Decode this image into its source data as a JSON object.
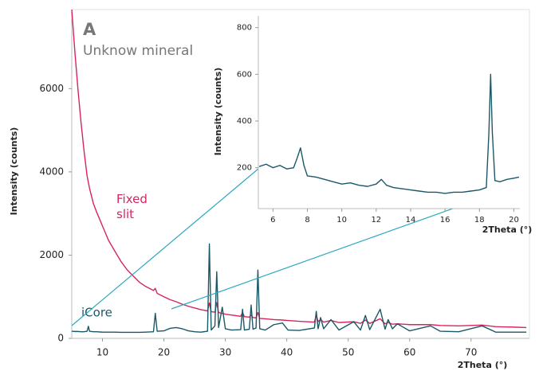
{
  "chart_data": [
    {
      "type": "line",
      "annotations": [
        "A",
        "Unknow mineral"
      ],
      "x_label": "2Theta (°)",
      "y_label": "Intensity (counts)",
      "xlim": [
        5,
        79.5
      ],
      "ylim": [
        0,
        7900
      ],
      "xticks": [
        10,
        20,
        30,
        40,
        50,
        60,
        70
      ],
      "yticks": [
        0,
        2000,
        4000,
        6000
      ],
      "x": [
        5,
        5.5,
        6,
        6.5,
        7,
        7.5,
        7.7,
        7.9,
        8.5,
        9,
        10,
        11,
        12,
        13,
        14,
        15,
        16,
        17,
        18.3,
        18.6,
        18.9,
        20,
        21,
        22,
        23,
        24,
        25,
        26,
        27.1,
        27.4,
        27.7,
        28.3,
        28.6,
        28.9,
        29.5,
        30,
        31,
        32.5,
        32.8,
        33.1,
        33.9,
        34.2,
        34.5,
        35,
        35.3,
        35.6,
        36.5,
        37.9,
        39.3,
        40.2,
        42,
        44.5,
        44.8,
        45.1,
        45.5,
        46,
        47.2,
        48.5,
        50.9,
        52,
        52.8,
        53.5,
        55.2,
        56,
        56.5,
        57.2,
        58,
        60,
        63.4,
        65,
        68,
        71.8,
        74,
        77,
        79
      ],
      "series": [
        {
          "name": "Fixed slit",
          "color": "#d6255d",
          "values": [
            7900,
            6900,
            6000,
            5200,
            4500,
            3900,
            3750,
            3600,
            3250,
            3050,
            2700,
            2350,
            2100,
            1850,
            1650,
            1500,
            1350,
            1250,
            1150,
            1200,
            1080,
            1000,
            930,
            880,
            820,
            770,
            730,
            690,
            660,
            850,
            640,
            630,
            860,
            620,
            600,
            580,
            560,
            530,
            620,
            520,
            510,
            560,
            500,
            490,
            620,
            480,
            470,
            450,
            440,
            430,
            410,
            390,
            560,
            400,
            450,
            390,
            430,
            380,
            400,
            360,
            440,
            360,
            470,
            350,
            380,
            340,
            350,
            330,
            330,
            310,
            300,
            320,
            280,
            270,
            260
          ]
        },
        {
          "name": "iCore",
          "color": "#1b5867",
          "values": [
            170,
            165,
            165,
            160,
            160,
            170,
            290,
            170,
            160,
            160,
            150,
            150,
            150,
            145,
            145,
            145,
            145,
            150,
            160,
            600,
            170,
            180,
            240,
            260,
            230,
            180,
            160,
            150,
            170,
            2270,
            200,
            300,
            1600,
            260,
            750,
            230,
            200,
            210,
            700,
            200,
            220,
            800,
            220,
            250,
            1640,
            230,
            200,
            330,
            370,
            200,
            190,
            250,
            650,
            230,
            500,
            230,
            450,
            200,
            400,
            200,
            550,
            210,
            700,
            220,
            450,
            230,
            350,
            180,
            300,
            170,
            160,
            300,
            150,
            150,
            150
          ]
        }
      ]
    },
    {
      "type": "line",
      "x_label": "2Theta (°)",
      "y_label": "Intensity (counts)",
      "xlim": [
        5.15,
        20.35
      ],
      "ylim": [
        25,
        850
      ],
      "xticks": [
        6,
        8,
        10,
        12,
        14,
        16,
        18,
        20
      ],
      "yticks": [
        200,
        400,
        600,
        800
      ],
      "x": [
        5.2,
        5.6,
        6,
        6.4,
        6.8,
        7.2,
        7.4,
        7.6,
        7.8,
        8,
        8.5,
        9,
        9.5,
        10,
        10.5,
        11,
        11.5,
        12,
        12.3,
        12.6,
        13,
        13.5,
        14,
        14.5,
        15,
        15.5,
        16,
        16.5,
        17,
        17.5,
        18,
        18.4,
        18.55,
        18.65,
        18.75,
        18.9,
        19.2,
        19.6,
        20,
        20.3
      ],
      "series": [
        {
          "color": "#1b5867",
          "values": [
            205,
            215,
            200,
            210,
            195,
            200,
            240,
            285,
            210,
            165,
            160,
            150,
            140,
            130,
            135,
            125,
            120,
            130,
            150,
            125,
            115,
            110,
            105,
            100,
            95,
            95,
            90,
            95,
            95,
            100,
            105,
            115,
            350,
            600,
            350,
            145,
            140,
            150,
            155,
            160
          ]
        }
      ]
    }
  ]
}
